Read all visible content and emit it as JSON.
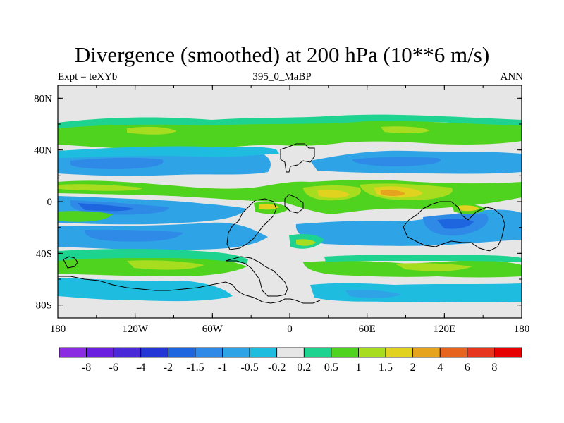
{
  "title": "Divergence (smoothed) at 200 hPa (10**6 m/s)",
  "subtitle_left": "Expt = teXYb",
  "subtitle_center": "395_0_MaBP",
  "subtitle_right": "ANN",
  "y_axis": {
    "tick_labels": [
      "80N",
      "40N",
      "0",
      "40S",
      "80S"
    ],
    "tick_values": [
      80,
      40,
      0,
      -40,
      -80
    ],
    "range": [
      -90,
      90
    ]
  },
  "x_axis": {
    "tick_labels": [
      "180",
      "120W",
      "60W",
      "0",
      "60E",
      "120E",
      "180"
    ],
    "tick_values": [
      -180,
      -120,
      -60,
      0,
      60,
      120,
      180
    ],
    "range": [
      -180,
      180
    ]
  },
  "colorbar": {
    "labels": [
      "-8",
      "-6",
      "-4",
      "-2",
      "-1.5",
      "-1",
      "-0.5",
      "-0.2",
      "0.2",
      "0.5",
      "1",
      "1.5",
      "2",
      "4",
      "6",
      "8"
    ],
    "colors": [
      "#8b2be2",
      "#6a1fe0",
      "#4a2ad8",
      "#2536d6",
      "#1e66e0",
      "#2e8ae6",
      "#2ea4e6",
      "#1ebde0",
      "#e6e6e6",
      "#1ed38f",
      "#4fd31e",
      "#a8dc1e",
      "#e0d21e",
      "#e6a31e",
      "#e6641e",
      "#e6361e",
      "#e60000"
    ]
  },
  "palette": {
    "background": "#e6e6e6",
    "weak_neg": "#1ebde0",
    "neg": "#2ea4e6",
    "mid_neg": "#2e8ae6",
    "strong_neg": "#1e66e0",
    "weak_pos": "#1ed38f",
    "pos": "#4fd31e",
    "mid_pos": "#a8dc1e",
    "strong_pos": "#e0d21e",
    "peak_pos": "#e6a31e"
  }
}
